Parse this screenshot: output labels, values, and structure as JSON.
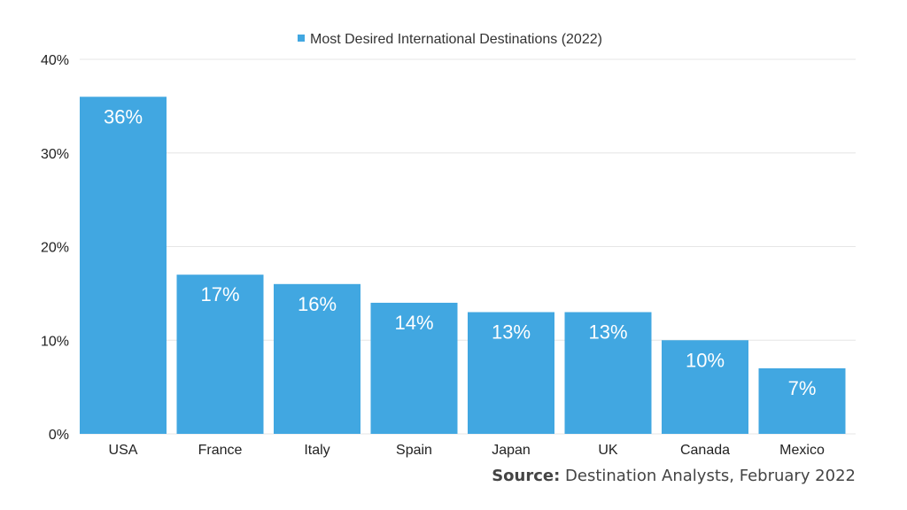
{
  "colors": {
    "bar": "#41a7e1",
    "grid": "#e6e6e6",
    "axis_text": "#222222",
    "data_label": "#ffffff"
  },
  "source": {
    "prefix": "Source:",
    "text": "Destination Analysts, February 2022"
  },
  "chart_data": {
    "type": "bar",
    "title": "",
    "xlabel": "",
    "ylabel": "",
    "categories": [
      "USA",
      "France",
      "Italy",
      "Spain",
      "Japan",
      "UK",
      "Canada",
      "Mexico"
    ],
    "series": [
      {
        "name": "Most Desired International Destinations (2022)",
        "values": [
          36,
          17,
          16,
          14,
          13,
          13,
          10,
          7
        ],
        "data_labels": [
          "36%",
          "17%",
          "16%",
          "14%",
          "13%",
          "13%",
          "10%",
          "7%"
        ]
      }
    ],
    "yticks": [
      0,
      10,
      20,
      30,
      40
    ],
    "ytick_labels": [
      "0%",
      "10%",
      "20%",
      "30%",
      "40%"
    ],
    "ylim": [
      0,
      40
    ],
    "grid": true,
    "legend_position": "top-center"
  }
}
